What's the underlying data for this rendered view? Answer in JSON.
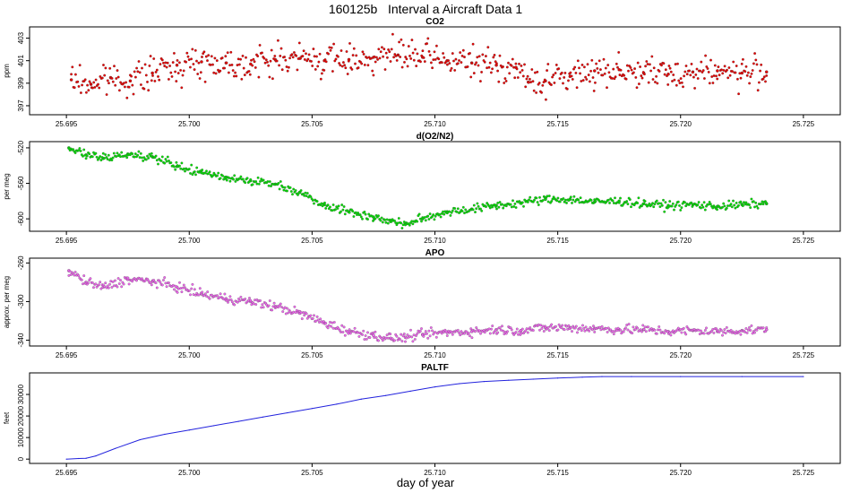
{
  "figure": {
    "title": "160125b   Interval a Aircraft Data 1",
    "xlabel": "day of year"
  },
  "chart_data": [
    {
      "type": "scatter",
      "title": "CO2",
      "ylabel": "ppm",
      "color": "#e60000",
      "xlim": [
        25.6935,
        25.7265
      ],
      "ylim": [
        396.2,
        404.0
      ],
      "xticks": [
        25.695,
        25.7,
        25.705,
        25.71,
        25.715,
        25.72,
        25.725
      ],
      "xtick_labels": [
        "25.695",
        "25.700",
        "25.705",
        "25.710",
        "25.715",
        "25.720",
        "25.725"
      ],
      "yticks": [
        397,
        399,
        401,
        403
      ],
      "ytick_labels": [
        "397",
        "399",
        "401",
        "403"
      ],
      "series": [
        {
          "name": "CO2",
          "x": [
            25.6952,
            25.696,
            25.6968,
            25.6976,
            25.6985,
            25.6995,
            25.7005,
            25.7015,
            25.7025,
            25.7035,
            25.7045,
            25.7055,
            25.7065,
            25.7075,
            25.7085,
            25.7095,
            25.7105,
            25.7115,
            25.7125,
            25.7133,
            25.7138,
            25.7145,
            25.7155,
            25.7165,
            25.7175,
            25.7185,
            25.7195,
            25.7205,
            25.7215,
            25.7225,
            25.7235
          ],
          "y": [
            399.3,
            398.9,
            399.5,
            399.2,
            399.9,
            400.6,
            400.9,
            400.8,
            400.7,
            401.1,
            401.2,
            401.0,
            401.1,
            401.3,
            401.5,
            401.3,
            401.0,
            400.8,
            400.6,
            400.4,
            399.1,
            399.2,
            399.6,
            400.1,
            400.2,
            399.9,
            399.8,
            400.0,
            400.1,
            399.9,
            400.0
          ]
        }
      ]
    },
    {
      "type": "scatter",
      "title": "d(O2/N2)",
      "ylabel": "per meg",
      "color": "#00dd00",
      "xlim": [
        25.6935,
        25.7265
      ],
      "ylim": [
        -614,
        -513
      ],
      "xticks": [
        25.695,
        25.7,
        25.705,
        25.71,
        25.715,
        25.72,
        25.725
      ],
      "xtick_labels": [
        "25.695",
        "25.700",
        "25.705",
        "25.710",
        "25.715",
        "25.720",
        "25.725"
      ],
      "yticks": [
        -600,
        -560,
        -520
      ],
      "ytick_labels": [
        "-600",
        "-560",
        "-520"
      ],
      "series": [
        {
          "name": "d(O2/N2)",
          "x": [
            25.6951,
            25.6958,
            25.6965,
            25.6975,
            25.6985,
            25.6995,
            25.7005,
            25.7015,
            25.7025,
            25.7035,
            25.7045,
            25.7055,
            25.7065,
            25.7075,
            25.7082,
            25.7088,
            25.7095,
            25.7105,
            25.7115,
            25.7125,
            25.7135,
            25.7145,
            25.7155,
            25.7165,
            25.7175,
            25.7185,
            25.7195,
            25.7205,
            25.7215,
            25.7225,
            25.7235
          ],
          "y": [
            -520,
            -528,
            -532,
            -527,
            -530,
            -541,
            -548,
            -553,
            -557,
            -561,
            -570,
            -584,
            -592,
            -598,
            -603,
            -606,
            -600,
            -592,
            -589,
            -585,
            -582,
            -578,
            -578,
            -581,
            -580,
            -583,
            -585,
            -584,
            -586,
            -584,
            -583
          ]
        }
      ]
    },
    {
      "type": "scatter",
      "title": "APO",
      "ylabel": "approx. per meg",
      "color": "#ee66ee",
      "xlim": [
        25.6935,
        25.7265
      ],
      "ylim": [
        -346,
        -255
      ],
      "xticks": [
        25.695,
        25.7,
        25.705,
        25.71,
        25.715,
        25.72,
        25.725
      ],
      "xtick_labels": [
        "25.695",
        "25.700",
        "25.705",
        "25.710",
        "25.715",
        "25.720",
        "25.725"
      ],
      "yticks": [
        -340,
        -300,
        -260
      ],
      "ytick_labels": [
        "-340",
        "-300",
        "-260"
      ],
      "series": [
        {
          "name": "APO",
          "x": [
            25.6951,
            25.6958,
            25.6965,
            25.6975,
            25.6985,
            25.6995,
            25.7005,
            25.7015,
            25.7025,
            25.7035,
            25.7045,
            25.7055,
            25.7065,
            25.7075,
            25.7082,
            25.7088,
            25.7095,
            25.7105,
            25.7115,
            25.7125,
            25.7135,
            25.7145,
            25.7155,
            25.7165,
            25.7175,
            25.7185,
            25.7195,
            25.7205,
            25.7215,
            25.7225,
            25.7235
          ],
          "y": [
            -268,
            -280,
            -285,
            -277,
            -279,
            -285,
            -292,
            -297,
            -300,
            -305,
            -312,
            -322,
            -331,
            -335,
            -338,
            -337,
            -334,
            -332,
            -331,
            -329,
            -330,
            -327,
            -327,
            -328,
            -329,
            -329,
            -331,
            -330,
            -331,
            -330,
            -329
          ]
        }
      ]
    },
    {
      "type": "line",
      "title": "PALTF",
      "ylabel": "feet",
      "color": "#2222dd",
      "xlim": [
        25.6935,
        25.7265
      ],
      "ylim": [
        -2000,
        40000
      ],
      "xticks": [
        25.695,
        25.7,
        25.705,
        25.71,
        25.715,
        25.72,
        25.725
      ],
      "xtick_labels": [
        "25.695",
        "25.700",
        "25.705",
        "25.710",
        "25.715",
        "25.720",
        "25.725"
      ],
      "yticks": [
        0,
        10000,
        20000,
        30000
      ],
      "ytick_labels": [
        "0",
        "10000",
        "20000",
        "30000"
      ],
      "series": [
        {
          "name": "PALTF",
          "x": [
            25.695,
            25.6955,
            25.6958,
            25.6962,
            25.697,
            25.698,
            25.699,
            25.7,
            25.701,
            25.702,
            25.703,
            25.704,
            25.705,
            25.706,
            25.707,
            25.708,
            25.709,
            25.71,
            25.711,
            25.712,
            25.713,
            25.714,
            25.715,
            25.716,
            25.7168,
            25.718,
            25.72,
            25.7225,
            25.725
          ],
          "y": [
            0,
            300,
            400,
            1500,
            5000,
            9000,
            11500,
            13500,
            15500,
            17500,
            19500,
            21500,
            23500,
            25500,
            27800,
            29500,
            31500,
            33500,
            35000,
            36000,
            36600,
            37100,
            37600,
            38000,
            38300,
            38300,
            38300,
            38300,
            38300
          ]
        }
      ]
    }
  ]
}
